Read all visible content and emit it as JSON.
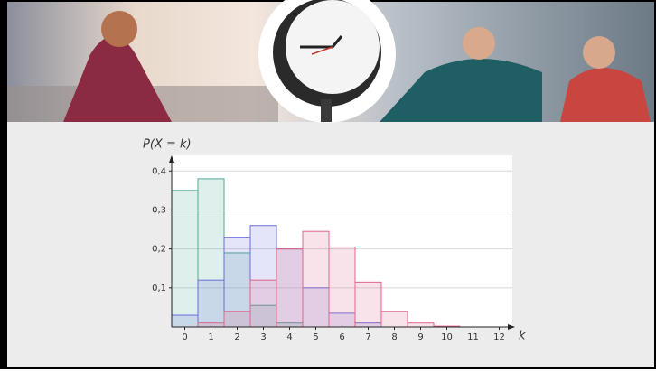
{
  "chart_data": {
    "type": "bar",
    "y_label": "P(X = k)",
    "x_label": "k",
    "x": [
      0,
      1,
      2,
      3,
      4,
      5,
      6,
      7,
      8,
      9,
      10,
      11,
      12
    ],
    "xlim": [
      -0.5,
      12.5
    ],
    "xticks": [
      0,
      1,
      2,
      3,
      4,
      5,
      6,
      7,
      8,
      9,
      10,
      11,
      12
    ],
    "ylim": [
      0,
      0.44
    ],
    "yticks": [
      {
        "value": 0.1,
        "label": "0,1"
      },
      {
        "value": 0.2,
        "label": "0,2"
      },
      {
        "value": 0.3,
        "label": "0,3"
      },
      {
        "value": 0.4,
        "label": "0,4"
      }
    ],
    "grid": true,
    "series": [
      {
        "color": "#4fa893",
        "values": [
          0.35,
          0.38,
          0.19,
          0.055,
          0.01,
          0,
          0,
          0,
          0,
          0,
          0,
          0,
          0
        ]
      },
      {
        "color": "#6a6ed8",
        "values": [
          0.03,
          0.12,
          0.23,
          0.26,
          0.2,
          0.1,
          0.035,
          0.01,
          0,
          0,
          0,
          0,
          0
        ]
      },
      {
        "color": "#e0648a",
        "values": [
          0,
          0.01,
          0.04,
          0.12,
          0.2,
          0.245,
          0.205,
          0.115,
          0.04,
          0.01,
          0.002,
          0,
          0
        ]
      }
    ]
  }
}
